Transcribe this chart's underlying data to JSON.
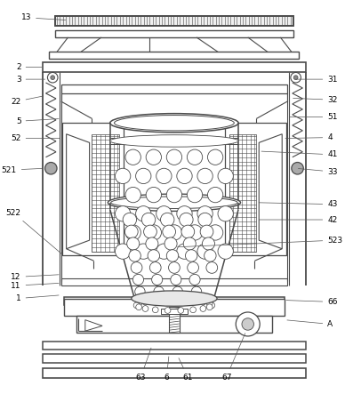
{
  "bg_color": "#ffffff",
  "line_color": "#4a4a4a",
  "label_color": "#000000",
  "figsize": [
    3.88,
    4.43
  ],
  "dpi": 100
}
